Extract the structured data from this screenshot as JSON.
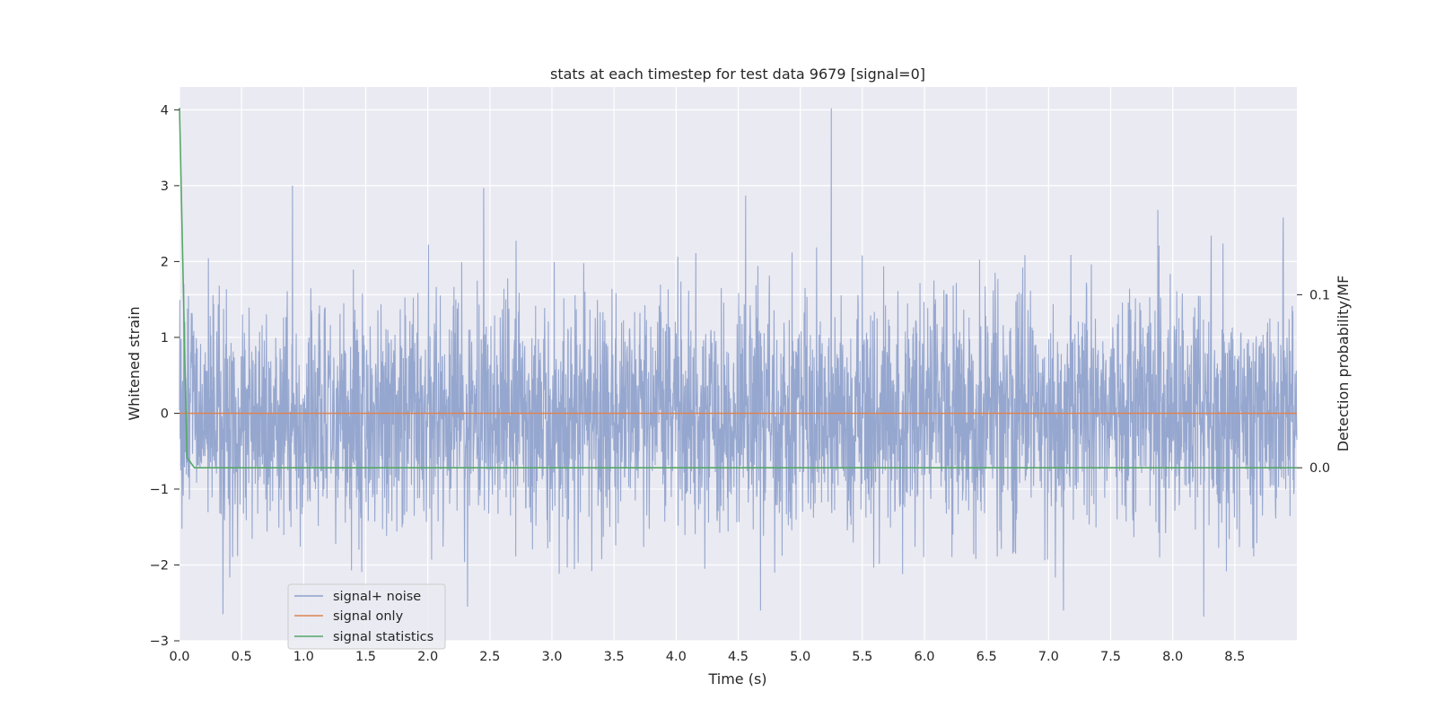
{
  "chart_data": {
    "type": "line",
    "title": "stats at each timestep for test data 9679 [signal=0]",
    "xlabel": "Time (s)",
    "ylabel": "Whitened strain",
    "ylabel_right": "Detection probability/MF",
    "xlim": [
      0.0,
      9.0
    ],
    "ylim": [
      -3.0,
      4.3
    ],
    "ylim_right": [
      -0.1,
      0.22
    ],
    "x_ticks": [
      "0.0",
      "0.5",
      "1.0",
      "1.5",
      "2.0",
      "2.5",
      "3.0",
      "3.5",
      "4.0",
      "4.5",
      "5.0",
      "5.5",
      "6.0",
      "6.5",
      "7.0",
      "7.5",
      "8.0",
      "8.5"
    ],
    "y_ticks": [
      "4",
      "3",
      "2",
      "1",
      "0",
      "−1",
      "−2",
      "−3"
    ],
    "y_ticks_right": [
      "0.1",
      "0.0"
    ],
    "grid": true,
    "legend_position": "lower-left",
    "series": [
      {
        "name": "signal+ noise",
        "axis": "left",
        "color": "#8da0cb",
        "description_stats": {
          "mean": 0,
          "std": 0.75
        },
        "peaks": [
          [
            0.91,
            3.0
          ],
          [
            2.45,
            2.97
          ],
          [
            4.56,
            2.87
          ],
          [
            5.25,
            4.02
          ],
          [
            7.88,
            2.68
          ],
          [
            8.89,
            2.58
          ],
          [
            8.25,
            -2.68
          ],
          [
            4.68,
            -2.6
          ],
          [
            7.12,
            -2.6
          ],
          [
            0.35,
            -2.65
          ],
          [
            2.32,
            -2.55
          ]
        ]
      },
      {
        "name": "signal only",
        "axis": "left",
        "color": "#dd8452",
        "x": [
          0.0,
          9.0
        ],
        "values": [
          0.0,
          0.0
        ]
      },
      {
        "name": "signal statistics",
        "axis": "right",
        "color": "#55a868",
        "x": [
          0.0,
          0.06,
          0.12,
          0.2,
          9.0
        ],
        "values": [
          0.208,
          0.006,
          0.0,
          0.0,
          0.0
        ]
      }
    ]
  }
}
